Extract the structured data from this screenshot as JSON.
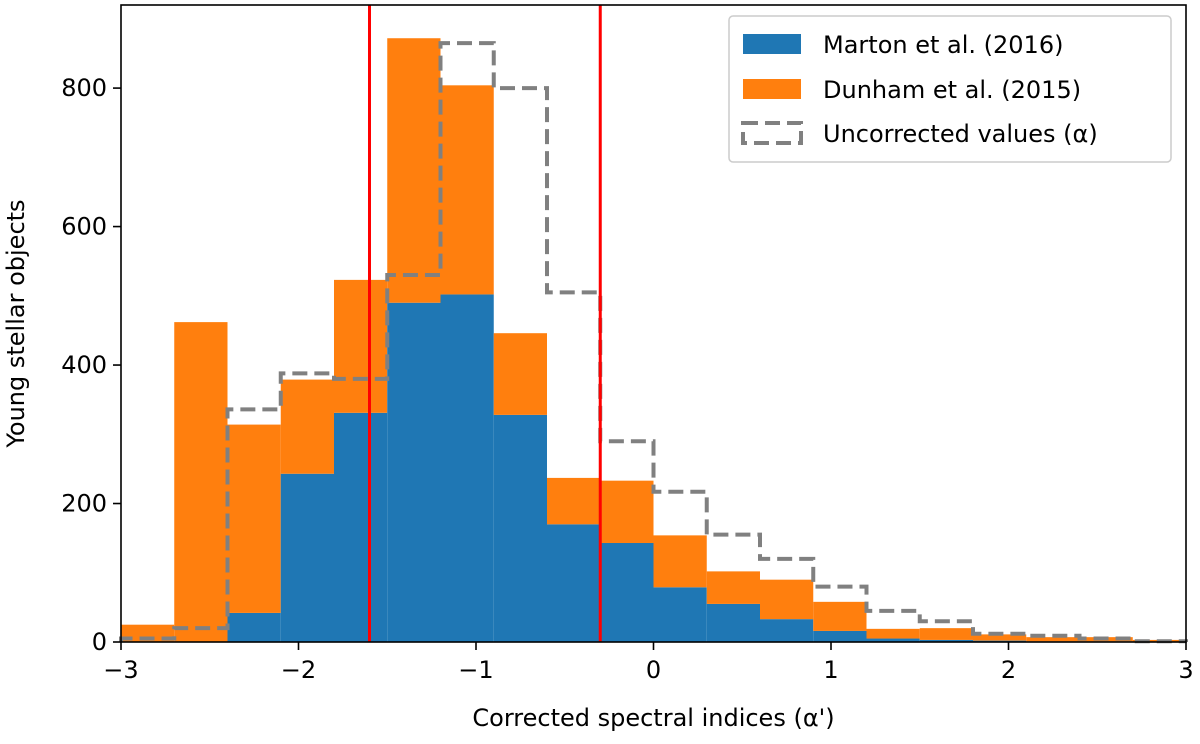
{
  "chart_data": {
    "type": "histogram",
    "xlabel": "Corrected spectral indices (α')",
    "ylabel": "Young stellar objects",
    "xlim": [
      -3,
      3
    ],
    "ylim": [
      0,
      920
    ],
    "xticks": [
      -3,
      -2,
      -1,
      0,
      1,
      2,
      3
    ],
    "xtick_labels": [
      "−3",
      "−2",
      "−1",
      "0",
      "1",
      "2",
      "3"
    ],
    "yticks": [
      0,
      200,
      400,
      600,
      800
    ],
    "ytick_labels": [
      "0",
      "200",
      "400",
      "600",
      "800"
    ],
    "bin_edges": [
      -3.0,
      -2.7,
      -2.4,
      -2.1,
      -1.8,
      -1.5,
      -1.2,
      -0.9,
      -0.6,
      -0.3,
      0.0,
      0.3,
      0.6,
      0.9,
      1.2,
      1.5,
      1.8,
      2.1,
      2.4,
      2.7,
      3.0
    ],
    "series": [
      {
        "name": "Marton et al. (2016)",
        "color": "#1f77b4",
        "style": "stacked-bar",
        "values": [
          0,
          0,
          42,
          243,
          331,
          490,
          502,
          328,
          170,
          143,
          79,
          55,
          33,
          16,
          5,
          3,
          2,
          1,
          1,
          0
        ]
      },
      {
        "name": "Dunham et al. (2015)",
        "color": "#ff7f0e",
        "style": "stacked-bar",
        "values": [
          25,
          462,
          272,
          136,
          192,
          382,
          302,
          118,
          67,
          90,
          75,
          47,
          57,
          42,
          14,
          17,
          9,
          6,
          6,
          3
        ]
      },
      {
        "name": "Uncorrected values (α)",
        "color": "#808080",
        "style": "dashed-step",
        "values": [
          5,
          20,
          336,
          388,
          380,
          530,
          865,
          800,
          505,
          290,
          217,
          155,
          120,
          80,
          45,
          30,
          12,
          9,
          5,
          1
        ]
      }
    ],
    "vertical_lines": [
      {
        "x": -1.6,
        "color": "#ff0000"
      },
      {
        "x": -0.3,
        "color": "#ff0000"
      }
    ],
    "legend_position": "top-right"
  }
}
